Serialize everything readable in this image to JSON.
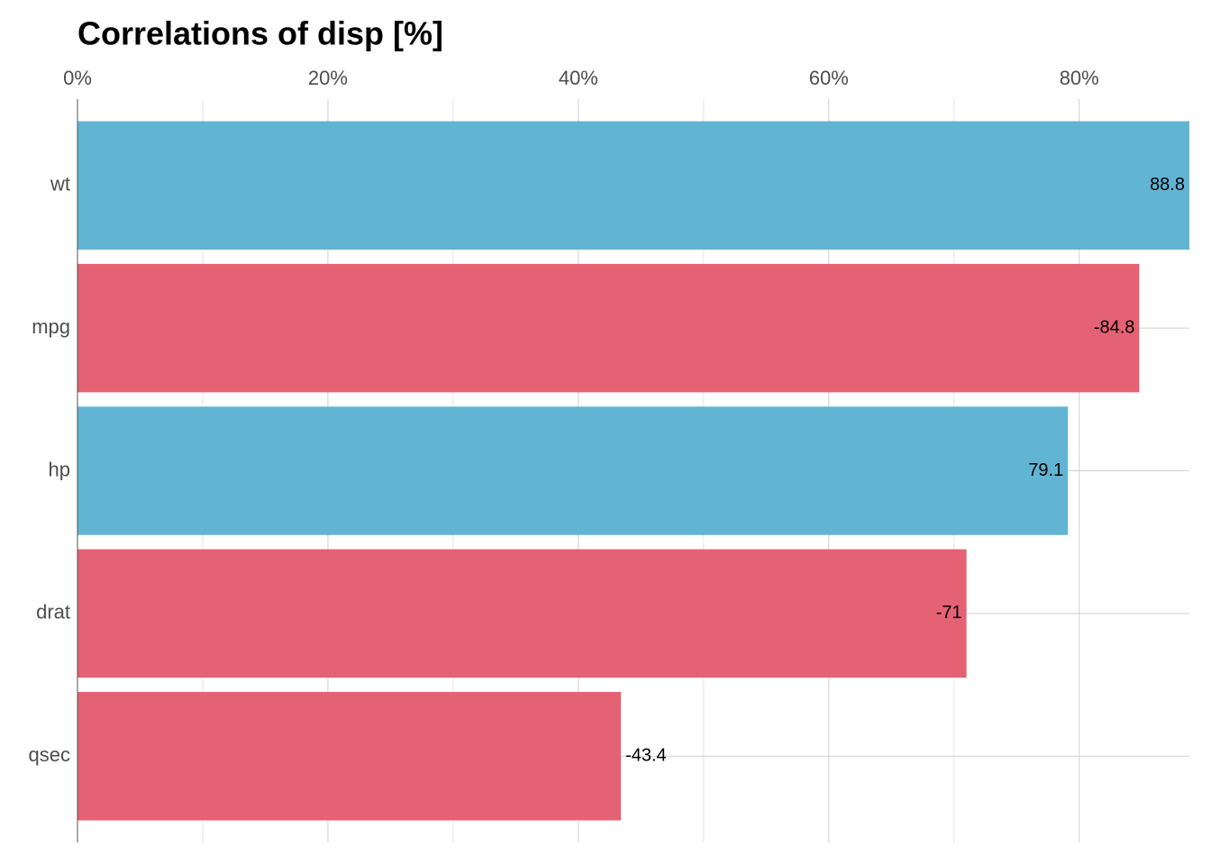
{
  "chart_data": {
    "type": "bar",
    "orientation": "horizontal",
    "title": "Correlations of disp [%]",
    "categories": [
      "wt",
      "mpg",
      "hp",
      "drat",
      "qsec"
    ],
    "values": [
      88.8,
      84.8,
      79.1,
      71,
      43.4
    ],
    "value_labels": [
      "88.8",
      "-84.8",
      "79.1",
      "-71",
      "-43.4"
    ],
    "colors": [
      "#62b4d3",
      "#e56174",
      "#62b4d3",
      "#e56174",
      "#e56174"
    ],
    "xlim": [
      0,
      88.8
    ],
    "xticks": [
      {
        "value": 0,
        "label": "0%"
      },
      {
        "value": 20,
        "label": "20%"
      },
      {
        "value": 40,
        "label": "40%"
      },
      {
        "value": 60,
        "label": "60%"
      },
      {
        "value": 80,
        "label": "80%"
      }
    ],
    "xminorticks": [
      10,
      30,
      50,
      70
    ],
    "grid": true
  }
}
